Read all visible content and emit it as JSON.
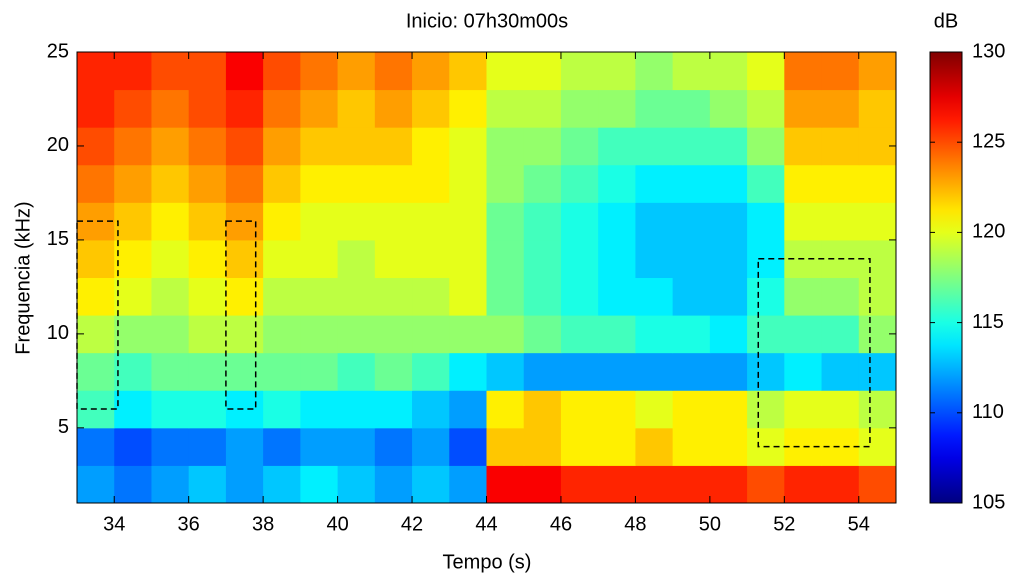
{
  "chart_data": {
    "type": "heatmap",
    "title": "Inicio: 07h30m00s",
    "x_label": "Tempo (s)",
    "y_label": "Frequencia (kHz)",
    "colorbar_label": "dB",
    "colormap": "jet",
    "xlim": [
      33,
      55
    ],
    "ylim": [
      1,
      25
    ],
    "clim": [
      105,
      130
    ],
    "xticks": [
      34,
      36,
      38,
      40,
      42,
      44,
      46,
      48,
      50,
      52,
      54
    ],
    "yticks": [
      5,
      10,
      15,
      20,
      25
    ],
    "cticks": [
      105,
      110,
      115,
      120,
      125,
      130
    ],
    "xbins": [
      33,
      34,
      35,
      36,
      37,
      38,
      39,
      40,
      41,
      42,
      43,
      44,
      45,
      46,
      47,
      48,
      49,
      50,
      51,
      52,
      53,
      54,
      55
    ],
    "ybins": [
      1,
      3,
      5,
      7,
      9,
      11,
      13,
      15,
      17,
      19,
      21,
      23,
      25
    ],
    "z": [
      [
        112,
        111,
        112,
        113,
        112,
        113,
        114,
        113,
        112,
        113,
        112,
        127,
        127,
        126,
        126,
        126,
        126,
        126,
        125,
        126,
        126,
        125
      ],
      [
        111,
        110,
        111,
        111,
        112,
        111,
        112,
        112,
        111,
        112,
        110,
        122,
        122,
        121,
        121,
        122,
        121,
        121,
        120,
        121,
        121,
        120
      ],
      [
        116,
        114,
        115,
        115,
        114,
        115,
        114,
        114,
        114,
        113,
        112,
        121,
        122,
        121,
        121,
        120,
        121,
        121,
        119,
        120,
        120,
        119
      ],
      [
        117,
        116,
        117,
        117,
        117,
        117,
        117,
        116,
        117,
        116,
        114,
        113,
        112,
        112,
        112,
        112,
        112,
        112,
        113,
        114,
        113,
        113
      ],
      [
        119,
        118,
        118,
        119,
        119,
        118,
        118,
        118,
        118,
        118,
        118,
        118,
        117,
        116,
        116,
        115,
        115,
        114,
        116,
        116,
        116,
        118
      ],
      [
        121,
        120,
        119,
        120,
        121,
        119,
        119,
        119,
        119,
        119,
        120,
        117,
        116,
        115,
        114,
        114,
        113,
        113,
        115,
        118,
        118,
        119
      ],
      [
        122,
        121,
        120,
        121,
        122,
        120,
        120,
        119,
        120,
        120,
        120,
        117,
        116,
        115,
        114,
        113,
        113,
        113,
        114,
        119,
        119,
        119
      ],
      [
        123,
        122,
        121,
        122,
        123,
        121,
        120,
        120,
        120,
        120,
        120,
        117,
        116,
        115,
        114,
        113,
        113,
        113,
        114,
        120,
        120,
        120
      ],
      [
        124,
        123,
        122,
        123,
        124,
        122,
        121,
        121,
        121,
        121,
        120,
        118,
        117,
        116,
        115,
        114,
        114,
        114,
        116,
        121,
        121,
        121
      ],
      [
        125,
        124,
        123,
        124,
        125,
        123,
        122,
        122,
        122,
        121,
        120,
        118,
        118,
        117,
        116,
        116,
        116,
        116,
        118,
        122,
        122,
        122
      ],
      [
        126,
        125,
        124,
        125,
        126,
        124,
        123,
        122,
        123,
        122,
        121,
        119,
        119,
        118,
        118,
        117,
        117,
        118,
        119,
        123,
        123,
        122
      ],
      [
        126,
        126,
        125,
        125,
        127,
        125,
        124,
        123,
        124,
        123,
        122,
        120,
        120,
        119,
        119,
        118,
        119,
        119,
        120,
        124,
        124,
        123
      ]
    ],
    "boxes": [
      {
        "x": [
          33,
          34.1
        ],
        "y": [
          6,
          16
        ]
      },
      {
        "x": [
          37,
          37.8
        ],
        "y": [
          6,
          16
        ]
      },
      {
        "x": [
          51.3,
          54.3
        ],
        "y": [
          4,
          14
        ]
      }
    ]
  }
}
